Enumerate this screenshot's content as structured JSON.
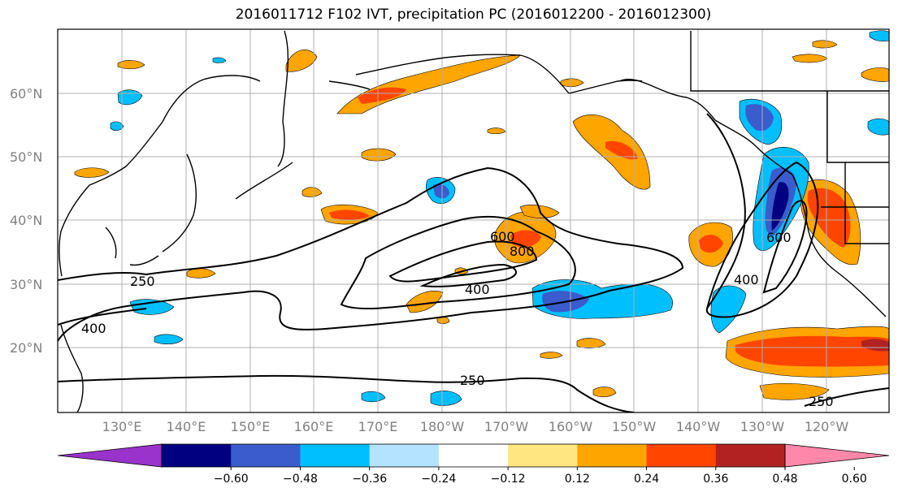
{
  "title": "2016011712 F102 IVT, precipitation PC (2016012200 - 2016012300)",
  "map": {
    "lat_labels": [
      "20°N",
      "30°N",
      "40°N",
      "50°N",
      "60°N"
    ],
    "lon_labels": [
      "130°E",
      "140°E",
      "150°E",
      "160°E",
      "170°E",
      "180°W",
      "170°W",
      "160°W",
      "150°W",
      "140°W",
      "130°W",
      "120°W"
    ],
    "contour_labels": [
      "250",
      "400",
      "600",
      "800",
      "400",
      "250",
      "250",
      "400",
      "600"
    ]
  },
  "colorbar": {
    "colors": [
      "#9933cc",
      "#000080",
      "#3a5ccc",
      "#00bfff",
      "#b3e3ff",
      "#ffffff",
      "#ffe680",
      "#ffa500",
      "#ff4500",
      "#b22222",
      "#ff88aa"
    ],
    "tick_labels": [
      "−0.60",
      "−0.48",
      "−0.36",
      "−0.24",
      "−0.12",
      "0.12",
      "0.24",
      "0.36",
      "0.48",
      "0.60"
    ]
  }
}
